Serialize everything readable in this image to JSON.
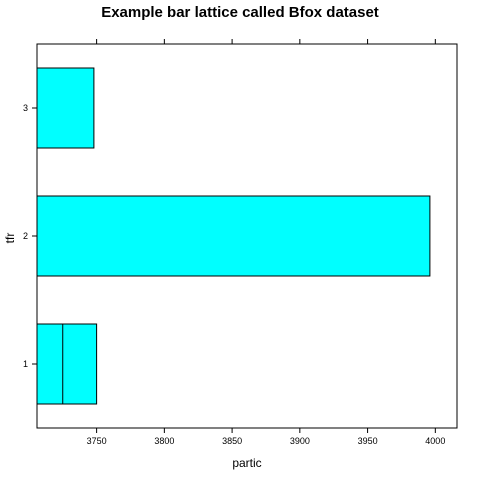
{
  "chart_data": {
    "type": "bar",
    "orientation": "horizontal",
    "title": "Example bar lattice called Bfox dataset",
    "xlabel": "partic",
    "ylabel": "tfr",
    "categories": [
      "1",
      "2",
      "3"
    ],
    "bars": [
      {
        "category": "1",
        "start": 3706,
        "value": 3750
      },
      {
        "category": "2",
        "start": 3706,
        "value": 3996
      },
      {
        "category": "3",
        "start": 3706,
        "value": 3748
      }
    ],
    "inner_segment": {
      "category": "1",
      "start": 3706,
      "value": 3725
    },
    "xticks": [
      3750,
      3800,
      3850,
      3900,
      3950,
      4000
    ],
    "xlim": [
      3706,
      4016
    ],
    "grid": false,
    "colors": {
      "bar_fill": "#00ffff",
      "bar_stroke": "#000000",
      "axis": "#000000"
    }
  }
}
